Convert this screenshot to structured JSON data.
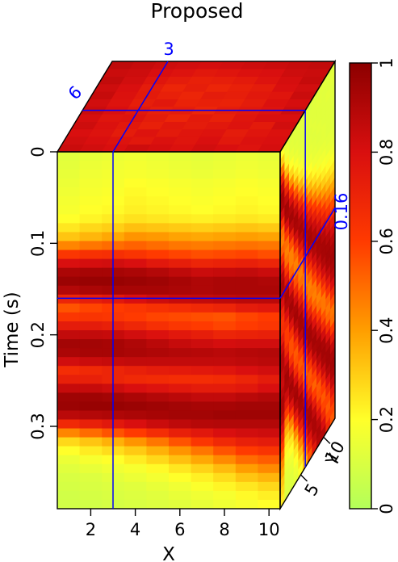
{
  "chart_data": {
    "type": "heatmap",
    "title": "Proposed",
    "xlabel": "X",
    "ylabel": "Time (s)",
    "zlabel": "Y",
    "x_ticks": [
      "2",
      "4",
      "6",
      "8",
      "10"
    ],
    "time_ticks": [
      "0",
      "0.1",
      "0.2",
      "0.3"
    ],
    "y_ticks": [
      "5",
      "10"
    ],
    "slice_labels": {
      "x": "3",
      "y": "6",
      "time": "0.16"
    },
    "colorbar": {
      "ticks": [
        "0",
        "0.2",
        "0.4",
        "0.6",
        "0.8",
        "1"
      ],
      "range": [
        0,
        1
      ]
    },
    "x_range": [
      0.5,
      10.5
    ],
    "time_range": [
      0,
      0.39
    ],
    "y_range": [
      0.5,
      12.5
    ],
    "slice_color": "#0000ff",
    "colormap": [
      "#b3ff5a",
      "#ffff2a",
      "#ff9e00",
      "#ff3a00",
      "#d90f0f",
      "#8c0000"
    ],
    "front_face": {
      "note_values": "rows = time samples (0 to 0.39 s), columns = X = 1..10, amplitude 0..1",
      "rows": [
        [
          0.12,
          0.14,
          0.15,
          0.16,
          0.15,
          0.14,
          0.13,
          0.14,
          0.15,
          0.14
        ],
        [
          0.13,
          0.15,
          0.16,
          0.17,
          0.16,
          0.15,
          0.14,
          0.15,
          0.16,
          0.15
        ],
        [
          0.14,
          0.16,
          0.17,
          0.18,
          0.17,
          0.16,
          0.15,
          0.16,
          0.17,
          0.16
        ],
        [
          0.15,
          0.17,
          0.18,
          0.2,
          0.19,
          0.18,
          0.17,
          0.18,
          0.19,
          0.18
        ],
        [
          0.16,
          0.18,
          0.19,
          0.21,
          0.2,
          0.19,
          0.18,
          0.19,
          0.2,
          0.19
        ],
        [
          0.17,
          0.19,
          0.2,
          0.22,
          0.21,
          0.2,
          0.19,
          0.2,
          0.21,
          0.2
        ],
        [
          0.18,
          0.2,
          0.21,
          0.23,
          0.22,
          0.21,
          0.2,
          0.21,
          0.22,
          0.21
        ],
        [
          0.2,
          0.22,
          0.24,
          0.26,
          0.25,
          0.24,
          0.23,
          0.24,
          0.25,
          0.24
        ],
        [
          0.25,
          0.28,
          0.3,
          0.33,
          0.32,
          0.31,
          0.3,
          0.31,
          0.32,
          0.31
        ],
        [
          0.32,
          0.35,
          0.38,
          0.42,
          0.41,
          0.39,
          0.38,
          0.39,
          0.4,
          0.39
        ],
        [
          0.45,
          0.48,
          0.5,
          0.52,
          0.5,
          0.48,
          0.47,
          0.48,
          0.49,
          0.48
        ],
        [
          0.62,
          0.64,
          0.65,
          0.63,
          0.6,
          0.58,
          0.56,
          0.57,
          0.58,
          0.56
        ],
        [
          0.8,
          0.81,
          0.82,
          0.8,
          0.76,
          0.73,
          0.7,
          0.71,
          0.72,
          0.7
        ],
        [
          0.92,
          0.93,
          0.93,
          0.92,
          0.9,
          0.87,
          0.84,
          0.85,
          0.86,
          0.84
        ],
        [
          0.96,
          0.97,
          0.97,
          0.96,
          0.95,
          0.93,
          0.91,
          0.92,
          0.92,
          0.91
        ],
        [
          0.9,
          0.92,
          0.93,
          0.93,
          0.93,
          0.92,
          0.91,
          0.92,
          0.92,
          0.92
        ],
        [
          0.7,
          0.73,
          0.76,
          0.8,
          0.83,
          0.85,
          0.86,
          0.87,
          0.88,
          0.88
        ],
        [
          0.55,
          0.58,
          0.6,
          0.62,
          0.64,
          0.66,
          0.68,
          0.7,
          0.74,
          0.76
        ],
        [
          0.62,
          0.63,
          0.62,
          0.6,
          0.58,
          0.57,
          0.56,
          0.55,
          0.58,
          0.6
        ],
        [
          0.74,
          0.74,
          0.72,
          0.69,
          0.65,
          0.62,
          0.6,
          0.58,
          0.6,
          0.62
        ],
        [
          0.86,
          0.86,
          0.85,
          0.82,
          0.79,
          0.76,
          0.73,
          0.7,
          0.71,
          0.72
        ],
        [
          0.94,
          0.94,
          0.93,
          0.91,
          0.88,
          0.85,
          0.83,
          0.81,
          0.82,
          0.82
        ],
        [
          0.92,
          0.93,
          0.93,
          0.92,
          0.91,
          0.9,
          0.89,
          0.88,
          0.89,
          0.9
        ],
        [
          0.82,
          0.84,
          0.85,
          0.86,
          0.86,
          0.86,
          0.86,
          0.86,
          0.87,
          0.88
        ],
        [
          0.66,
          0.68,
          0.7,
          0.72,
          0.74,
          0.75,
          0.76,
          0.77,
          0.8,
          0.82
        ],
        [
          0.72,
          0.72,
          0.7,
          0.68,
          0.67,
          0.66,
          0.66,
          0.67,
          0.7,
          0.74
        ],
        [
          0.85,
          0.85,
          0.83,
          0.8,
          0.78,
          0.76,
          0.74,
          0.74,
          0.76,
          0.8
        ],
        [
          0.95,
          0.95,
          0.94,
          0.92,
          0.9,
          0.88,
          0.86,
          0.86,
          0.88,
          0.9
        ],
        [
          0.96,
          0.97,
          0.97,
          0.96,
          0.95,
          0.94,
          0.93,
          0.93,
          0.94,
          0.94
        ],
        [
          0.88,
          0.9,
          0.91,
          0.92,
          0.93,
          0.94,
          0.94,
          0.95,
          0.95,
          0.95
        ],
        [
          0.68,
          0.72,
          0.76,
          0.8,
          0.84,
          0.87,
          0.89,
          0.9,
          0.9,
          0.9
        ],
        [
          0.45,
          0.5,
          0.55,
          0.6,
          0.66,
          0.72,
          0.76,
          0.8,
          0.82,
          0.83
        ],
        [
          0.28,
          0.32,
          0.36,
          0.42,
          0.48,
          0.55,
          0.62,
          0.68,
          0.72,
          0.74
        ],
        [
          0.2,
          0.24,
          0.27,
          0.31,
          0.36,
          0.42,
          0.48,
          0.55,
          0.6,
          0.63
        ],
        [
          0.15,
          0.18,
          0.2,
          0.24,
          0.28,
          0.33,
          0.38,
          0.44,
          0.5,
          0.53
        ],
        [
          0.12,
          0.14,
          0.16,
          0.18,
          0.21,
          0.25,
          0.29,
          0.34,
          0.4,
          0.44
        ],
        [
          0.1,
          0.11,
          0.13,
          0.15,
          0.17,
          0.2,
          0.23,
          0.27,
          0.32,
          0.35
        ],
        [
          0.09,
          0.1,
          0.11,
          0.12,
          0.14,
          0.16,
          0.19,
          0.22,
          0.25,
          0.28
        ],
        [
          0.08,
          0.09,
          0.1,
          0.11,
          0.12,
          0.14,
          0.16,
          0.18,
          0.21,
          0.23
        ],
        [
          0.08,
          0.08,
          0.09,
          0.1,
          0.11,
          0.12,
          0.14,
          0.16,
          0.18,
          0.2
        ]
      ]
    },
    "top_face": {
      "note_values": "amplitude at time 0; rows = Y = 1..12, columns = X = 1..10",
      "rows": [
        [
          0.84,
          0.82,
          0.8,
          0.83,
          0.81,
          0.79,
          0.82,
          0.8,
          0.78,
          0.81
        ],
        [
          0.82,
          0.8,
          0.78,
          0.76,
          0.79,
          0.77,
          0.8,
          0.76,
          0.79,
          0.8
        ],
        [
          0.8,
          0.78,
          0.74,
          0.78,
          0.75,
          0.77,
          0.78,
          0.74,
          0.77,
          0.79
        ],
        [
          0.83,
          0.79,
          0.76,
          0.72,
          0.76,
          0.74,
          0.76,
          0.78,
          0.75,
          0.82
        ],
        [
          0.81,
          0.77,
          0.78,
          0.74,
          0.7,
          0.75,
          0.72,
          0.77,
          0.8,
          0.8
        ],
        [
          0.84,
          0.8,
          0.76,
          0.72,
          0.74,
          0.7,
          0.74,
          0.76,
          0.78,
          0.83
        ],
        [
          0.82,
          0.78,
          0.73,
          0.76,
          0.71,
          0.72,
          0.71,
          0.74,
          0.79,
          0.81
        ],
        [
          0.85,
          0.79,
          0.75,
          0.72,
          0.7,
          0.74,
          0.73,
          0.76,
          0.77,
          0.84
        ],
        [
          0.83,
          0.8,
          0.74,
          0.7,
          0.73,
          0.7,
          0.72,
          0.74,
          0.8,
          0.82
        ],
        [
          0.86,
          0.82,
          0.77,
          0.74,
          0.72,
          0.73,
          0.75,
          0.78,
          0.81,
          0.85
        ],
        [
          0.84,
          0.83,
          0.8,
          0.78,
          0.76,
          0.77,
          0.79,
          0.8,
          0.83,
          0.84
        ],
        [
          0.87,
          0.85,
          0.83,
          0.82,
          0.81,
          0.82,
          0.83,
          0.84,
          0.85,
          0.86
        ]
      ]
    },
    "side_face": {
      "note_values": "amplitude at X = 10; rows = time samples, columns = Y = 1..12",
      "rows": [
        [
          0.2,
          0.14,
          0.12,
          0.12,
          0.13,
          0.12,
          0.11,
          0.12,
          0.12,
          0.13,
          0.12,
          0.12
        ],
        [
          0.3,
          0.16,
          0.13,
          0.12,
          0.12,
          0.13,
          0.12,
          0.12,
          0.13,
          0.12,
          0.12,
          0.13
        ],
        [
          0.48,
          0.22,
          0.15,
          0.13,
          0.12,
          0.12,
          0.13,
          0.12,
          0.12,
          0.12,
          0.13,
          0.12
        ],
        [
          0.68,
          0.34,
          0.2,
          0.15,
          0.13,
          0.13,
          0.12,
          0.13,
          0.12,
          0.12,
          0.12,
          0.12
        ],
        [
          0.85,
          0.52,
          0.28,
          0.19,
          0.15,
          0.13,
          0.13,
          0.12,
          0.13,
          0.12,
          0.12,
          0.12
        ],
        [
          0.93,
          0.7,
          0.42,
          0.26,
          0.19,
          0.15,
          0.14,
          0.13,
          0.12,
          0.13,
          0.12,
          0.12
        ],
        [
          0.92,
          0.86,
          0.6,
          0.38,
          0.25,
          0.19,
          0.16,
          0.14,
          0.13,
          0.13,
          0.12,
          0.12
        ],
        [
          0.82,
          0.94,
          0.78,
          0.54,
          0.36,
          0.25,
          0.2,
          0.16,
          0.15,
          0.14,
          0.13,
          0.13
        ],
        [
          0.64,
          0.92,
          0.9,
          0.72,
          0.5,
          0.35,
          0.26,
          0.21,
          0.17,
          0.16,
          0.14,
          0.14
        ],
        [
          0.5,
          0.8,
          0.94,
          0.86,
          0.66,
          0.48,
          0.35,
          0.27,
          0.22,
          0.19,
          0.17,
          0.16
        ],
        [
          0.46,
          0.62,
          0.88,
          0.93,
          0.8,
          0.62,
          0.47,
          0.36,
          0.29,
          0.24,
          0.21,
          0.19
        ],
        [
          0.52,
          0.5,
          0.72,
          0.92,
          0.9,
          0.76,
          0.6,
          0.47,
          0.38,
          0.31,
          0.27,
          0.24
        ],
        [
          0.64,
          0.46,
          0.56,
          0.82,
          0.93,
          0.87,
          0.73,
          0.6,
          0.49,
          0.4,
          0.34,
          0.3
        ],
        [
          0.78,
          0.5,
          0.46,
          0.66,
          0.88,
          0.93,
          0.84,
          0.72,
          0.61,
          0.51,
          0.43,
          0.38
        ],
        [
          0.88,
          0.62,
          0.46,
          0.52,
          0.76,
          0.9,
          0.92,
          0.83,
          0.72,
          0.62,
          0.53,
          0.46
        ],
        [
          0.92,
          0.76,
          0.52,
          0.46,
          0.62,
          0.82,
          0.93,
          0.9,
          0.82,
          0.72,
          0.63,
          0.56
        ],
        [
          0.88,
          0.88,
          0.64,
          0.48,
          0.5,
          0.7,
          0.88,
          0.93,
          0.9,
          0.82,
          0.73,
          0.65
        ],
        [
          0.8,
          0.93,
          0.78,
          0.56,
          0.46,
          0.58,
          0.78,
          0.9,
          0.93,
          0.89,
          0.82,
          0.74
        ],
        [
          0.7,
          0.9,
          0.9,
          0.68,
          0.5,
          0.48,
          0.64,
          0.82,
          0.92,
          0.93,
          0.89,
          0.82
        ],
        [
          0.64,
          0.8,
          0.94,
          0.82,
          0.6,
          0.46,
          0.52,
          0.7,
          0.86,
          0.93,
          0.93,
          0.88
        ],
        [
          0.66,
          0.68,
          0.9,
          0.92,
          0.74,
          0.52,
          0.46,
          0.58,
          0.76,
          0.9,
          0.94,
          0.92
        ],
        [
          0.74,
          0.6,
          0.78,
          0.94,
          0.86,
          0.64,
          0.48,
          0.48,
          0.64,
          0.82,
          0.92,
          0.94
        ],
        [
          0.84,
          0.6,
          0.64,
          0.88,
          0.93,
          0.78,
          0.56,
          0.46,
          0.52,
          0.7,
          0.86,
          0.92
        ],
        [
          0.9,
          0.68,
          0.56,
          0.76,
          0.93,
          0.9,
          0.7,
          0.52,
          0.46,
          0.58,
          0.76,
          0.88
        ],
        [
          0.9,
          0.8,
          0.56,
          0.62,
          0.86,
          0.94,
          0.84,
          0.64,
          0.5,
          0.48,
          0.64,
          0.8
        ],
        [
          0.86,
          0.9,
          0.64,
          0.54,
          0.74,
          0.92,
          0.93,
          0.78,
          0.6,
          0.48,
          0.52,
          0.68
        ],
        [
          0.84,
          0.94,
          0.78,
          0.56,
          0.6,
          0.82,
          0.94,
          0.9,
          0.74,
          0.56,
          0.48,
          0.56
        ],
        [
          0.88,
          0.92,
          0.9,
          0.66,
          0.54,
          0.68,
          0.88,
          0.94,
          0.86,
          0.68,
          0.52,
          0.48
        ],
        [
          0.92,
          0.84,
          0.94,
          0.8,
          0.58,
          0.56,
          0.76,
          0.92,
          0.93,
          0.82,
          0.64,
          0.5
        ],
        [
          0.92,
          0.74,
          0.9,
          0.92,
          0.7,
          0.52,
          0.62,
          0.84,
          0.94,
          0.92,
          0.78,
          0.6
        ],
        [
          0.88,
          0.6,
          0.78,
          0.94,
          0.84,
          0.6,
          0.54,
          0.7,
          0.88,
          0.94,
          0.9,
          0.74
        ],
        [
          0.8,
          0.46,
          0.62,
          0.88,
          0.93,
          0.74,
          0.56,
          0.58,
          0.78,
          0.92,
          0.94,
          0.86
        ],
        [
          0.7,
          0.36,
          0.46,
          0.76,
          0.92,
          0.88,
          0.68,
          0.52,
          0.64,
          0.84,
          0.94,
          0.92
        ],
        [
          0.6,
          0.28,
          0.34,
          0.6,
          0.84,
          0.93,
          0.82,
          0.6,
          0.54,
          0.72,
          0.9,
          0.94
        ],
        [
          0.52,
          0.22,
          0.25,
          0.45,
          0.72,
          0.9,
          0.92,
          0.74,
          0.56,
          0.6,
          0.8,
          0.92
        ],
        [
          0.44,
          0.18,
          0.2,
          0.33,
          0.58,
          0.82,
          0.93,
          0.86,
          0.66,
          0.54,
          0.68,
          0.86
        ],
        [
          0.38,
          0.15,
          0.16,
          0.25,
          0.45,
          0.7,
          0.88,
          0.92,
          0.78,
          0.58,
          0.58,
          0.76
        ],
        [
          0.32,
          0.13,
          0.14,
          0.2,
          0.34,
          0.56,
          0.78,
          0.92,
          0.88,
          0.68,
          0.54,
          0.66
        ],
        [
          0.28,
          0.12,
          0.12,
          0.16,
          0.26,
          0.44,
          0.66,
          0.86,
          0.92,
          0.8,
          0.58,
          0.58
        ],
        [
          0.24,
          0.11,
          0.11,
          0.14,
          0.2,
          0.34,
          0.54,
          0.76,
          0.9,
          0.9,
          0.68,
          0.54
        ]
      ]
    }
  }
}
